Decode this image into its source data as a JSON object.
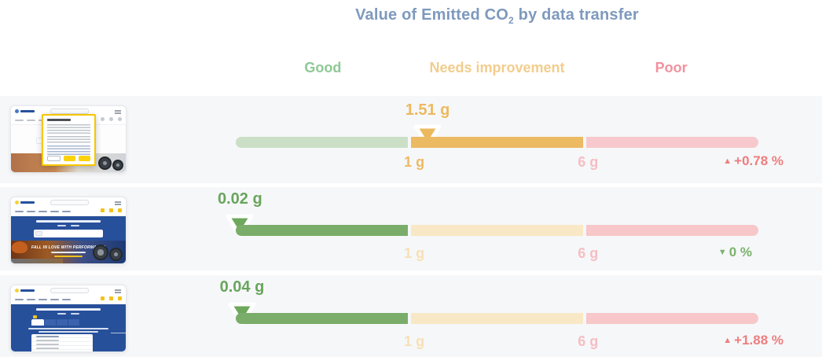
{
  "header": {
    "title_prefix": "Value of Emitted CO",
    "title_sub": "2",
    "title_suffix": " by data transfer",
    "zone_labels": [
      "Good",
      "Needs improvement",
      "Poor"
    ]
  },
  "colors": {
    "title": "#7e99bd",
    "good_label": "#8fc894",
    "needs_improvement_label": "#f2cd8c",
    "poor_label": "#f3929e",
    "good_solid": "#7aad69",
    "good_faded": "#cbdfc7",
    "warn_solid": "#ecba62",
    "warn_faded": "#f9e8c6",
    "poor_faded": "#f7c7ca",
    "delta_up": "#ee7e7e",
    "delta_down": "#7bb26d",
    "row_background": "#f6f7f9",
    "michelin_blue": "#27509b",
    "michelin_yellow": "#fdd20a"
  },
  "chart_data": {
    "type": "bullet",
    "title": "Value of Emitted CO2 by data transfer",
    "zones": [
      {
        "label": "Good",
        "range_g": [
          0,
          1
        ]
      },
      {
        "label": "Needs improvement",
        "range_g": [
          1,
          6
        ]
      },
      {
        "label": "Poor",
        "range_g": [
          6,
          null
        ]
      }
    ],
    "threshold_tick_labels": [
      "1 g",
      "6 g"
    ],
    "legend_position": "top",
    "rows": [
      {
        "value_g": 1.51,
        "zone": "Needs improvement",
        "change_pct": 0.78,
        "change_direction": "up"
      },
      {
        "value_g": 0.02,
        "zone": "Good",
        "change_pct": 0,
        "change_direction": "down"
      },
      {
        "value_g": 0.04,
        "zone": "Good",
        "change_pct": 1.88,
        "change_direction": "up"
      }
    ]
  },
  "rows": [
    {
      "value": "1.51 g",
      "zone_class": "warn",
      "marker_pct": 36.7,
      "min_label": "1 g",
      "max_label": "6 g",
      "delta_arrow": "▲",
      "delta": "+0.78 %",
      "delta_class": "up"
    },
    {
      "value": "0.02 g",
      "zone_class": "good",
      "marker_pct": 0.8,
      "min_label": "1 g",
      "max_label": "6 g",
      "delta_arrow": "▼",
      "delta": "0 %",
      "delta_class": "down"
    },
    {
      "value": "0.04 g",
      "zone_class": "good",
      "marker_pct": 1.2,
      "min_label": "1 g",
      "max_label": "6 g",
      "delta_arrow": "▲",
      "delta": "+1.88 %",
      "delta_class": "up"
    }
  ],
  "thumbnails": [
    {
      "name": "cookie-consent-page"
    },
    {
      "name": "homepage",
      "banner_text": "FALL IN LOVE WITH PERFORMANCE"
    },
    {
      "name": "tire-selector-page"
    }
  ]
}
